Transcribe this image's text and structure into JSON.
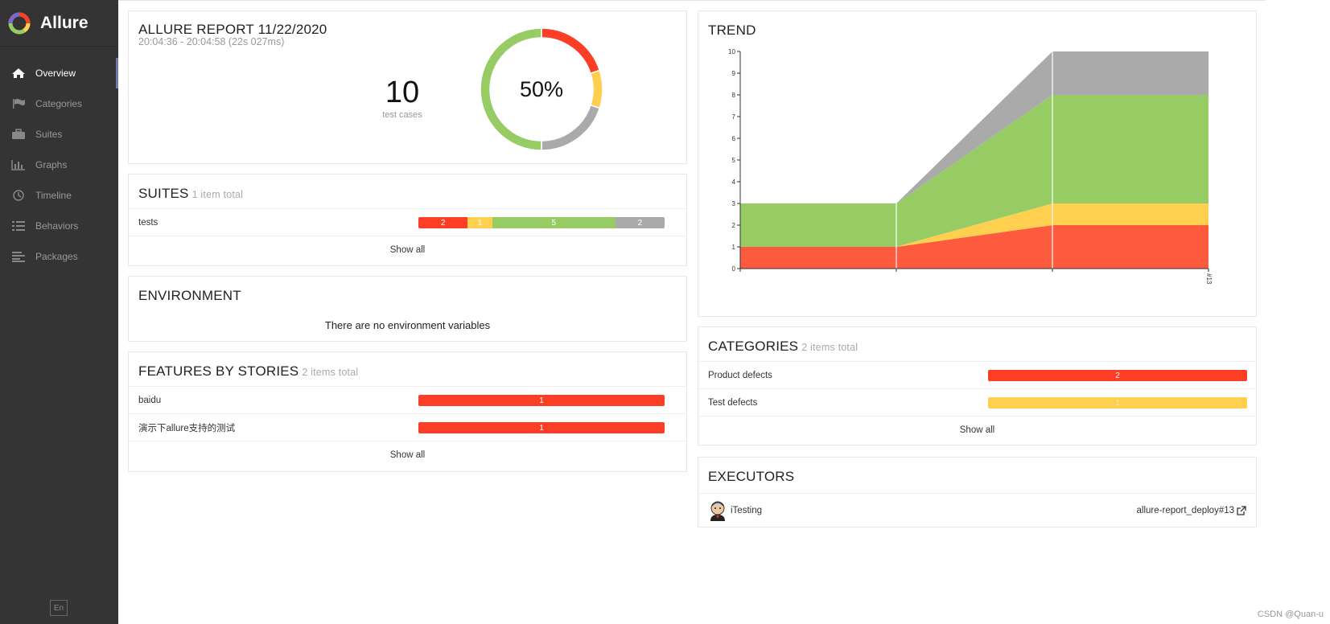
{
  "brand": {
    "name": "Allure"
  },
  "sidebar": {
    "items": [
      {
        "label": "Overview",
        "icon": "home-icon",
        "active": true
      },
      {
        "label": "Categories",
        "icon": "flag-icon",
        "active": false
      },
      {
        "label": "Suites",
        "icon": "briefcase-icon",
        "active": false
      },
      {
        "label": "Graphs",
        "icon": "bar-chart-icon",
        "active": false
      },
      {
        "label": "Timeline",
        "icon": "clock-icon",
        "active": false
      },
      {
        "label": "Behaviors",
        "icon": "list-icon",
        "active": false
      },
      {
        "label": "Packages",
        "icon": "align-left-icon",
        "active": false
      }
    ],
    "language": "En"
  },
  "summary": {
    "title": "ALLURE REPORT 11/22/2020",
    "time_range": "20:04:36 - 20:04:58 (22s 027ms)",
    "test_count": "10",
    "test_count_label": "test cases",
    "percent": "50%",
    "donut": [
      {
        "status": "failed",
        "value": 2,
        "color": "#fd3e26"
      },
      {
        "status": "broken",
        "value": 1,
        "color": "#ffd050"
      },
      {
        "status": "skipped",
        "value": 2,
        "color": "#aaaaaa"
      },
      {
        "status": "passed",
        "value": 5,
        "color": "#97cc64"
      }
    ]
  },
  "suites": {
    "title": "SUITES",
    "subtitle": "1 item total",
    "rows": [
      {
        "label": "tests",
        "segments": [
          {
            "value": "2",
            "n": 2,
            "color": "#fd3e26"
          },
          {
            "value": "1",
            "n": 1,
            "color": "#ffd050"
          },
          {
            "value": "5",
            "n": 5,
            "color": "#97cc64"
          },
          {
            "value": "2",
            "n": 2,
            "color": "#aaaaaa"
          }
        ]
      }
    ],
    "show_all": "Show all"
  },
  "environment": {
    "title": "ENVIRONMENT",
    "empty_text": "There are no environment variables"
  },
  "features": {
    "title": "FEATURES BY STORIES",
    "subtitle": "2 items total",
    "rows": [
      {
        "label": "baidu",
        "value": "1"
      },
      {
        "label": "演示下allure支持的测试",
        "value": "1"
      }
    ],
    "show_all": "Show all"
  },
  "trend": {
    "title": "TREND",
    "colors": {
      "failed": "#fd5a3e",
      "broken": "#ffd050",
      "passed": "#97cc64",
      "skipped": "#aaaaaa"
    }
  },
  "chart_data": {
    "type": "area",
    "title": "TREND",
    "x": [
      "",
      "",
      "",
      "#13"
    ],
    "ylim": [
      0,
      10
    ],
    "yticks": [
      0,
      1,
      2,
      3,
      4,
      5,
      6,
      7,
      8,
      9,
      10
    ],
    "stacked": true,
    "series": [
      {
        "name": "failed",
        "values": [
          1,
          1,
          2,
          2
        ]
      },
      {
        "name": "broken",
        "values": [
          0,
          0,
          1,
          1
        ]
      },
      {
        "name": "passed",
        "values": [
          2,
          2,
          5,
          5
        ]
      },
      {
        "name": "skipped",
        "values": [
          0,
          0,
          2,
          2
        ]
      }
    ]
  },
  "categories": {
    "title": "CATEGORIES",
    "subtitle": "2 items total",
    "rows": [
      {
        "label": "Product defects",
        "value": "2",
        "color": "#fd3e26"
      },
      {
        "label": "Test defects",
        "value": "1",
        "color": "#ffd050"
      }
    ],
    "show_all": "Show all"
  },
  "executors": {
    "title": "EXECUTORS",
    "name": "iTesting",
    "build": "allure-report_deploy#13"
  },
  "watermark": "CSDN @Quan-u"
}
